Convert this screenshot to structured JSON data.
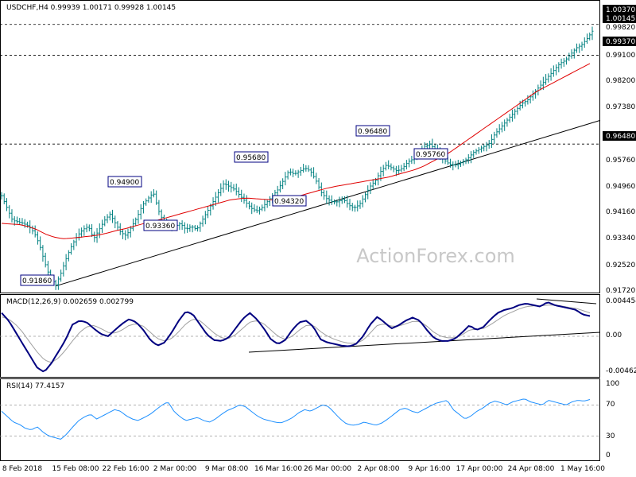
{
  "header": {
    "symbol_line": "USDCHF,H4  0.99939 1.00171 0.99928 1.00145",
    "macd_line": "MACD(12,26,9) 0.002659 0.002799",
    "rsi_line": "RSI(14) 77.4157"
  },
  "watermark": "ActionForex.com",
  "colors": {
    "price_bars": "#008080",
    "sma": "#e00000",
    "macd": "#000080",
    "signal": "#a0a0a0",
    "rsi": "#1e90ff",
    "trendline": "#000000",
    "axis_text": "#000000"
  },
  "chart_data": [
    {
      "type": "candlestick",
      "panel": "price",
      "symbol": "USDCHF",
      "timeframe": "H4",
      "ohlc": {
        "open": 0.99939,
        "high": 1.00171,
        "low": 0.99928,
        "close": 1.00145
      },
      "ylim": [
        0.917,
        1.007
      ],
      "y_ticks": [
        "1.00370",
        "0.99820",
        "0.99370",
        "0.99100",
        "0.98200",
        "0.97380",
        "0.96480",
        "0.95760",
        "0.94960",
        "0.94160",
        "0.93340",
        "0.92520",
        "0.91720"
      ],
      "x_ticks": [
        "8 Feb 2018",
        "15 Feb 08:00",
        "22 Feb 16:00",
        "2 Mar 00:00",
        "9 Mar 08:00",
        "16 Mar 16:00",
        "26 Mar 00:00",
        "2 Apr 08:00",
        "9 Apr 16:00",
        "17 Apr 00:00",
        "24 Apr 08:00",
        "1 May 16:00"
      ],
      "horizontal_levels": [
        1.0037,
        0.9937,
        0.9648
      ],
      "current_price": "1.00145",
      "annotations": [
        {
          "text": "0.91860",
          "value": 0.9186
        },
        {
          "text": "0.94900",
          "value": 0.949
        },
        {
          "text": "0.93360",
          "value": 0.9336
        },
        {
          "text": "0.95680",
          "value": 0.9568
        },
        {
          "text": "0.94320",
          "value": 0.9432
        },
        {
          "text": "0.96480",
          "value": 0.9648
        },
        {
          "text": "0.95760",
          "value": 0.9576
        }
      ],
      "close_path": [
        0.948,
        0.944,
        0.94,
        0.9395,
        0.939,
        0.938,
        0.936,
        0.932,
        0.926,
        0.921,
        0.919,
        0.923,
        0.928,
        0.932,
        0.935,
        0.937,
        0.938,
        0.934,
        0.937,
        0.94,
        0.942,
        0.939,
        0.936,
        0.935,
        0.938,
        0.941,
        0.945,
        0.947,
        0.949,
        0.943,
        0.939,
        0.937,
        0.938,
        0.939,
        0.937,
        0.938,
        0.937,
        0.94,
        0.943,
        0.946,
        0.949,
        0.952,
        0.951,
        0.95,
        0.948,
        0.946,
        0.944,
        0.943,
        0.944,
        0.946,
        0.948,
        0.95,
        0.953,
        0.956,
        0.955,
        0.956,
        0.957,
        0.956,
        0.953,
        0.949,
        0.947,
        0.946,
        0.946,
        0.947,
        0.945,
        0.944,
        0.945,
        0.948,
        0.951,
        0.953,
        0.956,
        0.958,
        0.957,
        0.956,
        0.957,
        0.959,
        0.96,
        0.962,
        0.964,
        0.9648,
        0.963,
        0.961,
        0.959,
        0.958,
        0.958,
        0.959,
        0.96,
        0.962,
        0.963,
        0.964,
        0.965,
        0.968,
        0.97,
        0.972,
        0.974,
        0.976,
        0.978,
        0.979,
        0.981,
        0.983,
        0.985,
        0.987,
        0.989,
        0.991,
        0.992,
        0.994,
        0.996,
        0.997,
        0.999,
        1.0015
      ],
      "sma_path": [
        0.939,
        0.9388,
        0.9386,
        0.938,
        0.937,
        0.9355,
        0.9345,
        0.934,
        0.9342,
        0.9345,
        0.9348,
        0.9352,
        0.9358,
        0.9366,
        0.9372,
        0.938,
        0.9388,
        0.9395,
        0.9402,
        0.941,
        0.9418,
        0.9426,
        0.9434,
        0.9442,
        0.945,
        0.9458,
        0.9466,
        0.947,
        0.9472,
        0.947,
        0.9468,
        0.9466,
        0.9468,
        0.9472,
        0.948,
        0.9488,
        0.9496,
        0.9504,
        0.951,
        0.9515,
        0.952,
        0.9525,
        0.953,
        0.9535,
        0.954,
        0.9548,
        0.9556,
        0.9564,
        0.9575,
        0.959,
        0.9605,
        0.962,
        0.964,
        0.966,
        0.968,
        0.97,
        0.972,
        0.974,
        0.976,
        0.978,
        0.98,
        0.982,
        0.9835,
        0.985,
        0.9865,
        0.988,
        0.9895,
        0.991
      ],
      "trendline": {
        "from": 0.9186,
        "to": 0.9725
      },
      "series": [
        {
          "name": "USDCHF,H4",
          "role": "price"
        }
      ]
    },
    {
      "type": "line",
      "panel": "macd",
      "ylim": [
        -0.005,
        0.0052
      ],
      "y_ticks": [
        "0.004454",
        "0.00",
        "-0.004624"
      ],
      "macd_path": [
        0.003,
        0.002,
        0.0005,
        -0.001,
        -0.0025,
        -0.004,
        -0.0046,
        -0.0035,
        -0.002,
        -0.0005,
        0.0015,
        0.002,
        0.0018,
        0.001,
        0.0003,
        0.0,
        0.0008,
        0.0016,
        0.0022,
        0.0018,
        0.0008,
        -0.0005,
        -0.0012,
        -0.0008,
        0.0005,
        0.002,
        0.0032,
        0.0028,
        0.0015,
        0.0002,
        -0.0005,
        -0.0006,
        -0.0002,
        0.001,
        0.0022,
        0.003,
        0.0022,
        0.001,
        -0.0004,
        -0.001,
        -0.0005,
        0.0008,
        0.0018,
        0.002,
        0.0012,
        -0.0004,
        -0.0008,
        -0.001,
        -0.0012,
        -0.0013,
        -0.001,
        0.0,
        0.0015,
        0.0025,
        0.0018,
        0.001,
        0.0014,
        0.002,
        0.0024,
        0.002,
        0.0008,
        -0.0002,
        -0.0006,
        -0.0006,
        -0.0003,
        0.0005,
        0.0014,
        0.0008,
        0.0012,
        0.0022,
        0.003,
        0.0034,
        0.0036,
        0.004,
        0.0042,
        0.004,
        0.0038,
        0.0044,
        0.004,
        0.0038,
        0.0036,
        0.0034,
        0.0028,
        0.0026
      ],
      "signal_path": [
        0.0025,
        0.0022,
        0.0015,
        0.0005,
        -0.0008,
        -0.002,
        -0.003,
        -0.0034,
        -0.0028,
        -0.0018,
        -0.0006,
        0.0005,
        0.0012,
        0.0014,
        0.001,
        0.0005,
        0.0004,
        0.0008,
        0.0014,
        0.0016,
        0.0013,
        0.0005,
        -0.0003,
        -0.0006,
        -0.0003,
        0.0006,
        0.0016,
        0.0022,
        0.002,
        0.0012,
        0.0004,
        -0.0002,
        -0.0003,
        0.0002,
        0.001,
        0.0018,
        0.002,
        0.0016,
        0.0008,
        0.0,
        -0.0004,
        0.0,
        0.0008,
        0.0014,
        0.0014,
        0.0006,
        0.0,
        -0.0004,
        -0.0007,
        -0.0009,
        -0.0009,
        -0.0005,
        0.0004,
        0.0014,
        0.0016,
        0.0013,
        0.0013,
        0.0016,
        0.0019,
        0.0019,
        0.0013,
        0.0005,
        0.0,
        -0.0002,
        -0.0002,
        0.0002,
        0.0008,
        0.0009,
        0.001,
        0.0015,
        0.0021,
        0.0027,
        0.0031,
        0.0035,
        0.0038,
        0.0039,
        0.0039,
        0.004,
        0.004,
        0.0039,
        0.0037,
        0.0036,
        0.0033,
        0.003
      ],
      "series": [
        {
          "name": "MACD(12,26,9)",
          "role": "macd"
        }
      ]
    },
    {
      "type": "line",
      "panel": "rsi",
      "ylim": [
        0,
        100
      ],
      "y_ticks": [
        "100",
        "70",
        "30",
        "0"
      ],
      "levels": [
        70,
        30
      ],
      "rsi_path": [
        62,
        55,
        48,
        45,
        40,
        38,
        42,
        35,
        30,
        28,
        26,
        33,
        42,
        50,
        55,
        58,
        52,
        56,
        60,
        64,
        62,
        56,
        52,
        50,
        54,
        58,
        64,
        70,
        74,
        62,
        55,
        50,
        52,
        54,
        50,
        48,
        52,
        58,
        63,
        66,
        70,
        68,
        62,
        56,
        52,
        50,
        48,
        47,
        50,
        54,
        60,
        64,
        62,
        66,
        70,
        68,
        60,
        52,
        46,
        44,
        45,
        48,
        46,
        44,
        47,
        52,
        58,
        64,
        66,
        62,
        60,
        64,
        68,
        72,
        74,
        76,
        64,
        58,
        52,
        56,
        62,
        66,
        72,
        75,
        73,
        70,
        74,
        76,
        78,
        74,
        72,
        70,
        76,
        74,
        72,
        70,
        74,
        76,
        75,
        77
      ],
      "series": [
        {
          "name": "RSI(14)",
          "role": "rsi"
        }
      ]
    }
  ]
}
